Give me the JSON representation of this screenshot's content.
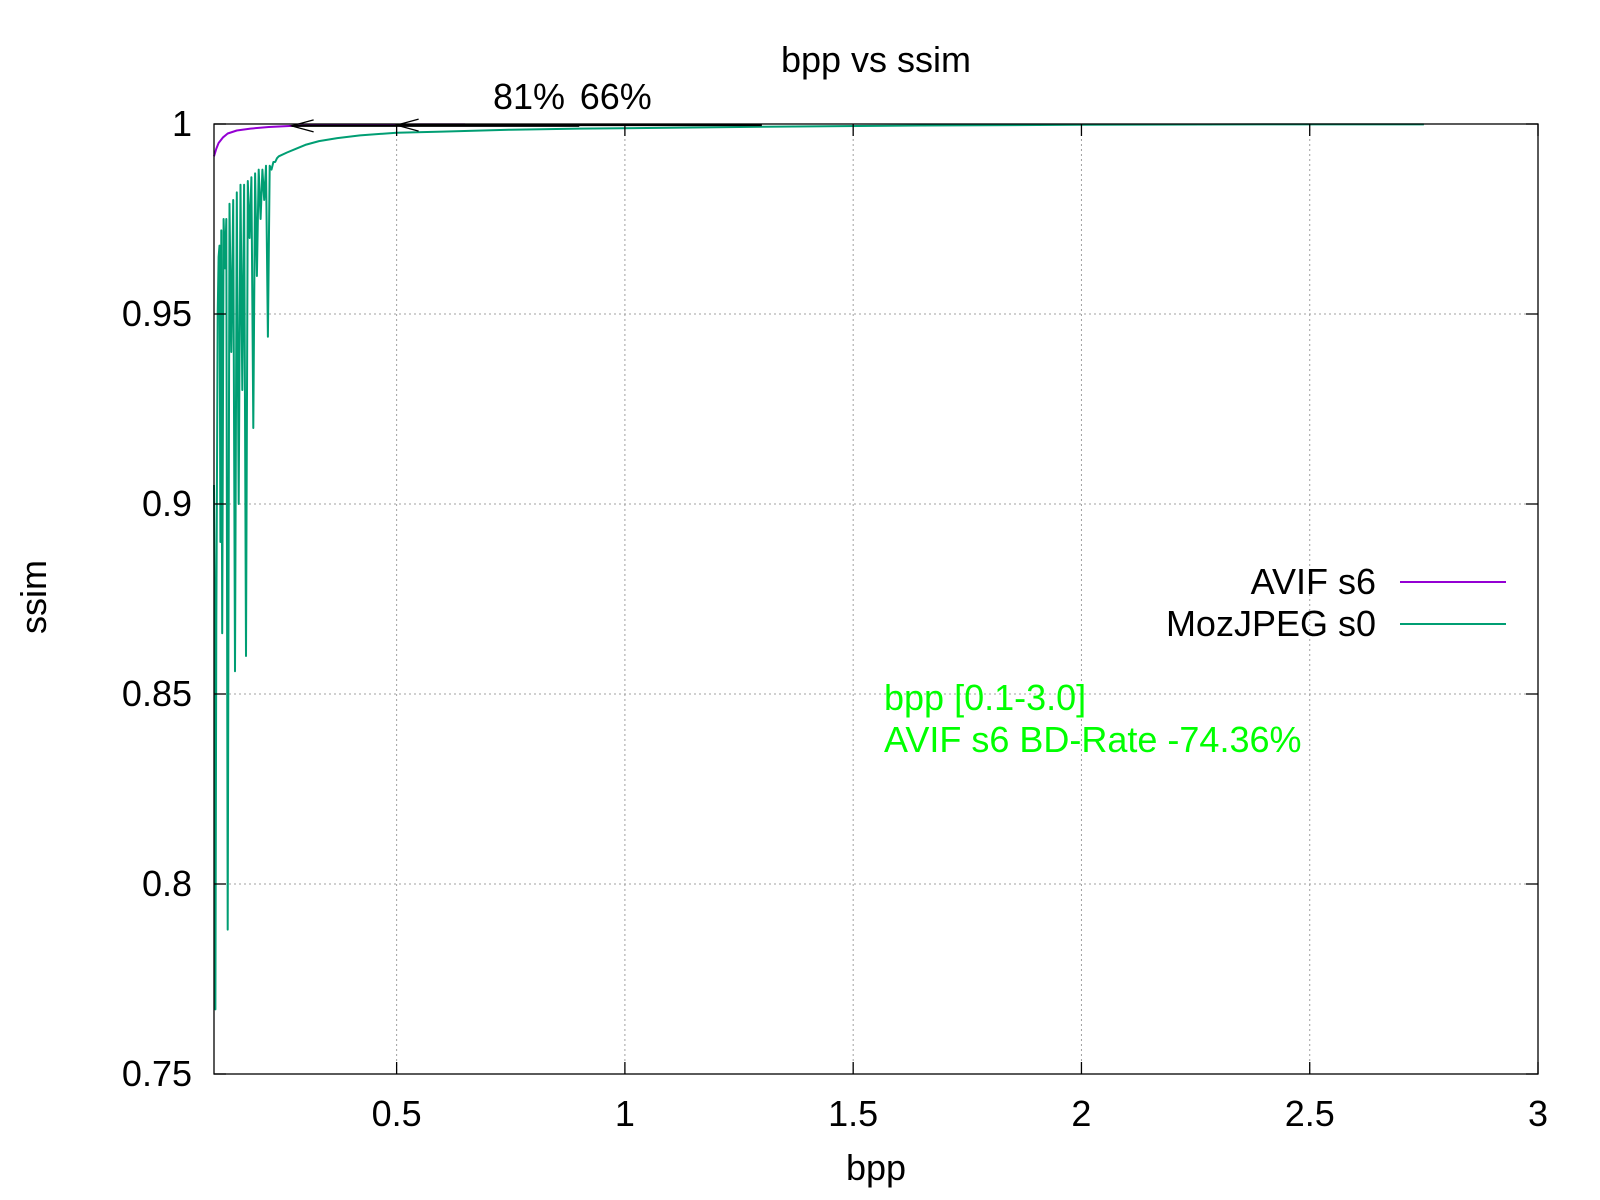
{
  "chart_data": {
    "type": "line",
    "title": "bpp vs ssim",
    "xlabel": "bpp",
    "ylabel": "ssim",
    "xlim": [
      0.1,
      3
    ],
    "ylim": [
      0.75,
      1
    ],
    "xticks": [
      {
        "value": 0.5,
        "label": "0.5"
      },
      {
        "value": 1,
        "label": "1"
      },
      {
        "value": 1.5,
        "label": "1.5"
      },
      {
        "value": 2,
        "label": "2"
      },
      {
        "value": 2.5,
        "label": "2.5"
      },
      {
        "value": 3,
        "label": "3"
      }
    ],
    "yticks": [
      {
        "value": 0.75,
        "label": "0.75"
      },
      {
        "value": 0.8,
        "label": "0.8"
      },
      {
        "value": 0.85,
        "label": "0.85"
      },
      {
        "value": 0.9,
        "label": "0.9"
      },
      {
        "value": 0.95,
        "label": "0.95"
      },
      {
        "value": 1,
        "label": "1"
      }
    ],
    "grid": true,
    "legend_position": "right",
    "series": [
      {
        "name": "AVIF s6",
        "color": "#9400d3",
        "x": [
          0.1,
          0.105,
          0.11,
          0.12,
          0.13,
          0.15,
          0.18,
          0.22,
          0.27,
          0.35,
          0.45,
          0.55,
          0.65
        ],
        "y": [
          0.9915,
          0.9935,
          0.995,
          0.9965,
          0.9975,
          0.9983,
          0.9988,
          0.9992,
          0.9995,
          0.9997,
          0.9998,
          0.9999,
          0.9999
        ]
      },
      {
        "name": "MozJPEG s0",
        "color": "#009e73",
        "x": [
          0.1,
          0.101,
          0.103,
          0.105,
          0.108,
          0.11,
          0.112,
          0.114,
          0.116,
          0.118,
          0.121,
          0.124,
          0.127,
          0.13,
          0.134,
          0.138,
          0.142,
          0.146,
          0.15,
          0.154,
          0.158,
          0.162,
          0.166,
          0.17,
          0.174,
          0.178,
          0.182,
          0.186,
          0.19,
          0.194,
          0.198,
          0.202,
          0.206,
          0.21,
          0.214,
          0.218,
          0.222,
          0.226,
          0.23,
          0.234,
          0.238,
          0.242,
          0.26,
          0.28,
          0.3,
          0.33,
          0.37,
          0.42,
          0.5,
          0.6,
          0.75,
          0.9,
          1.1,
          1.3,
          1.65,
          2.0,
          2.4,
          2.75
        ],
        "y": [
          0.905,
          0.882,
          0.767,
          0.868,
          0.95,
          0.965,
          0.968,
          0.89,
          0.972,
          0.866,
          0.975,
          0.962,
          0.975,
          0.788,
          0.979,
          0.94,
          0.98,
          0.856,
          0.982,
          0.9,
          0.984,
          0.93,
          0.984,
          0.86,
          0.985,
          0.97,
          0.986,
          0.92,
          0.987,
          0.96,
          0.988,
          0.975,
          0.988,
          0.98,
          0.989,
          0.944,
          0.989,
          0.988,
          0.99,
          0.99,
          0.991,
          0.9915,
          0.9925,
          0.9935,
          0.9945,
          0.9955,
          0.9963,
          0.997,
          0.9977,
          0.998,
          0.9985,
          0.9988,
          0.999,
          0.9993,
          0.9996,
          0.9998,
          0.9999,
          0.9999
        ]
      }
    ],
    "annotations": [
      {
        "text": "81%",
        "x": 0.79,
        "y": 1.004
      },
      {
        "text": "66%",
        "x": 0.98,
        "y": 1.004
      }
    ],
    "arrows": [
      {
        "from_x": 0.9,
        "to_x": 0.27,
        "y": 0.9995
      },
      {
        "from_x": 1.3,
        "to_x": 0.5,
        "y": 0.9997
      }
    ],
    "note": {
      "color": "#00ff00",
      "lines": [
        "bpp [0.1-3.0]",
        "AVIF s6 BD-Rate -74.36%"
      ]
    }
  }
}
